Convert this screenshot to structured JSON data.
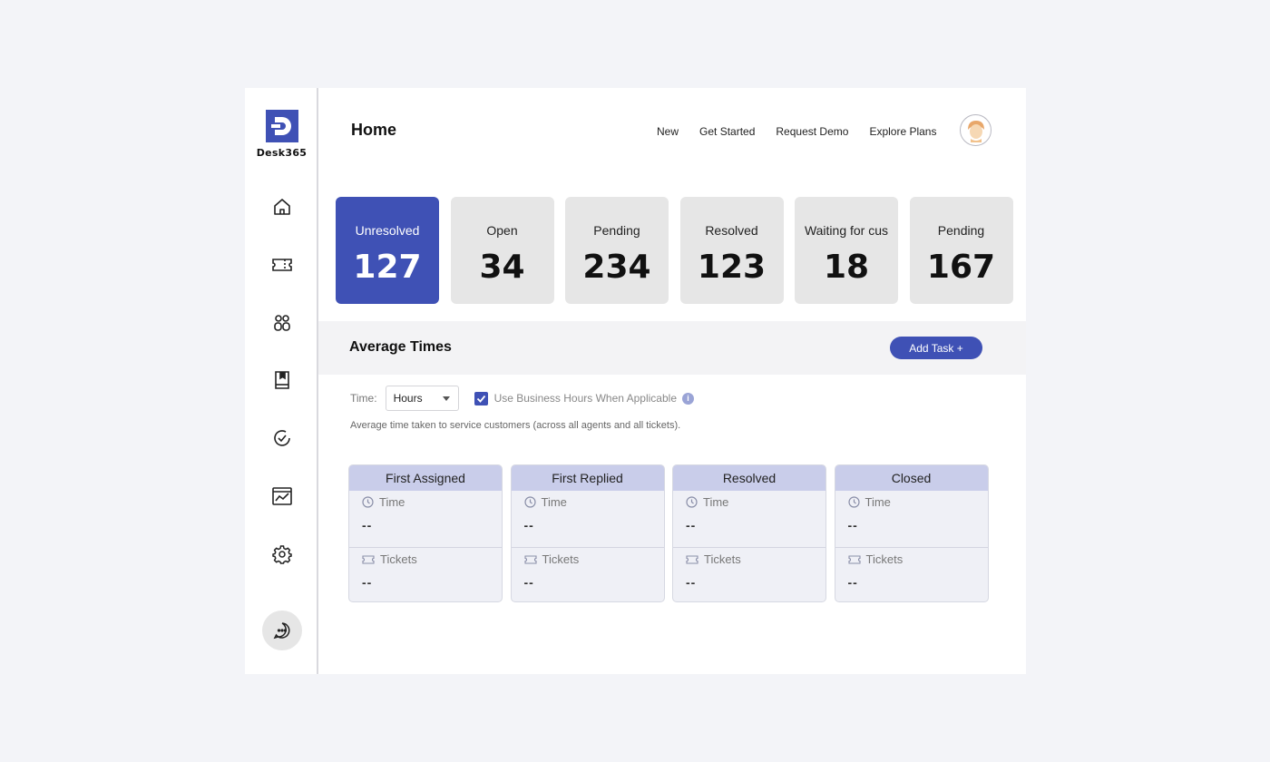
{
  "brand": {
    "name": "Desk365"
  },
  "page": {
    "title": "Home"
  },
  "topnav": [
    "New",
    "Get Started",
    "Request Demo",
    "Explore Plans"
  ],
  "stats": [
    {
      "label": "Unresolved",
      "value": "127"
    },
    {
      "label": "Open",
      "value": "34"
    },
    {
      "label": "Pending",
      "value": "234"
    },
    {
      "label": "Resolved",
      "value": "123"
    },
    {
      "label": "Waiting for cus",
      "value": "18"
    },
    {
      "label": "Pending",
      "value": "167"
    }
  ],
  "average": {
    "title": "Average Times",
    "add_task_label": "Add Task +",
    "time_label": "Time:",
    "time_unit": "Hours",
    "business_hours_label": "Use Business Hours When Applicable",
    "business_hours_checked": true,
    "info_glyph": "i",
    "description": "Average time taken to service customers (across all agents and all tickets).",
    "cards": [
      {
        "title": "First Assigned",
        "time_label": "Time",
        "time_value": "--",
        "tickets_label": "Tickets",
        "tickets_value": "--"
      },
      {
        "title": "First Replied",
        "time_label": "Time",
        "time_value": "--",
        "tickets_label": "Tickets",
        "tickets_value": "--"
      },
      {
        "title": "Resolved",
        "time_label": "Time",
        "time_value": "--",
        "tickets_label": "Tickets",
        "tickets_value": "--"
      },
      {
        "title": "Closed",
        "time_label": "Time",
        "time_value": "--",
        "tickets_label": "Tickets",
        "tickets_value": "--"
      }
    ]
  },
  "sidebar_icons": [
    "home-icon",
    "ticket-icon",
    "contacts-icon",
    "knowledge-base-icon",
    "tasks-icon",
    "reports-icon",
    "settings-icon",
    "chat-icon"
  ],
  "colors": {
    "accent": "#3f51b5",
    "card_header": "#c9cdea",
    "stat_bg": "#e6e6e6"
  }
}
